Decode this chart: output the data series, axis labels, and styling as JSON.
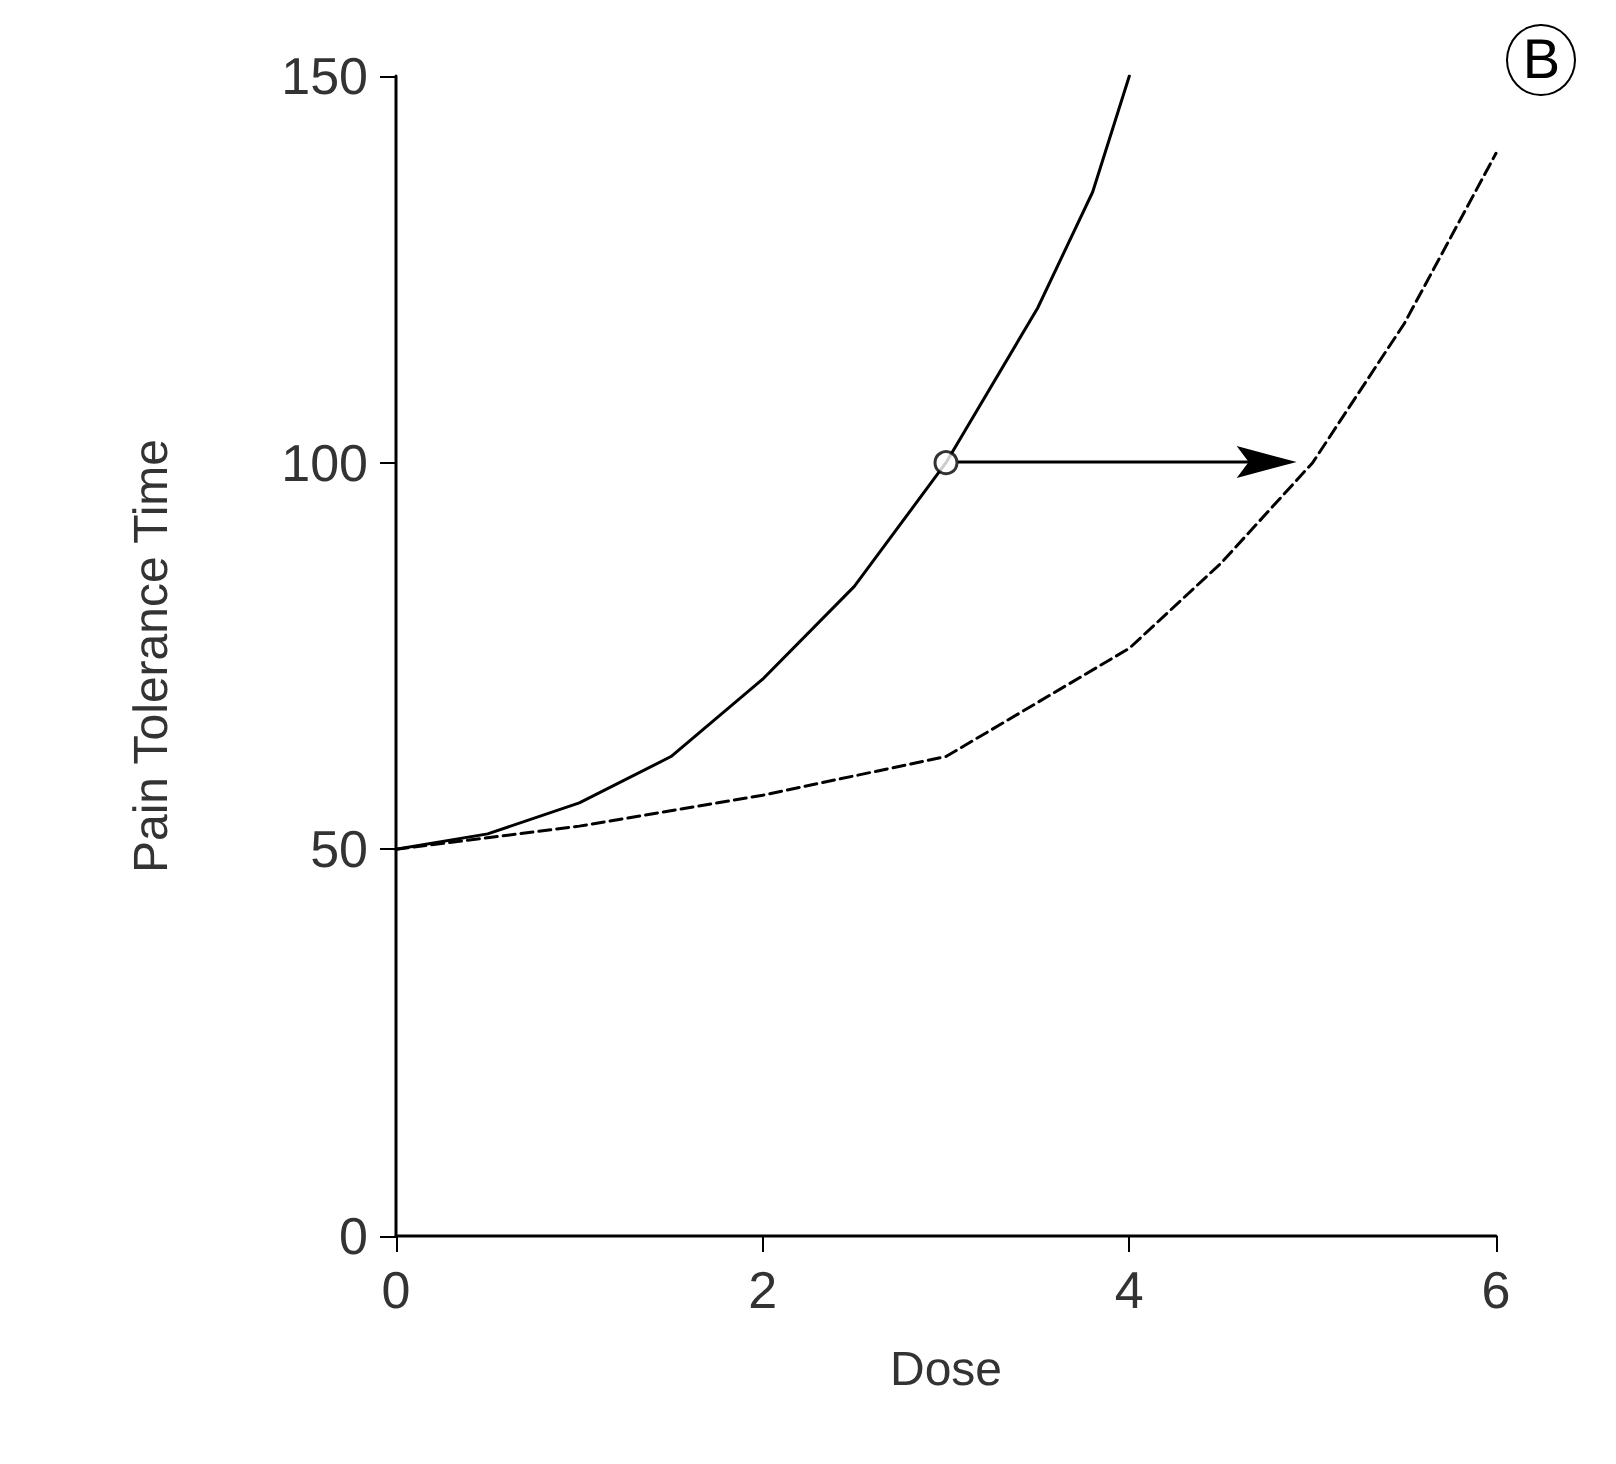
{
  "chart_data": {
    "type": "line",
    "xlabel": "Dose",
    "ylabel": "Pain Tolerance Time",
    "annotations": [
      "B"
    ],
    "xlim": [
      0,
      6
    ],
    "ylim": [
      0,
      150
    ],
    "xticks": [
      0,
      2,
      4,
      6
    ],
    "yticks": [
      0,
      50,
      100,
      150
    ],
    "series": [
      {
        "color": "#000000",
        "line_style": "solid",
        "marker": "none",
        "x": [
          0,
          0.5,
          1,
          1.5,
          2,
          2.5,
          3,
          3.5,
          3.8,
          4
        ],
        "values": [
          50,
          52,
          56,
          62,
          72,
          84,
          100,
          120,
          135,
          150
        ]
      },
      {
        "color": "#000000",
        "line_style": "dashed",
        "marker": "none",
        "x": [
          0,
          1,
          2,
          3,
          4,
          4.5,
          5,
          5.5,
          6
        ],
        "values": [
          50,
          53,
          57,
          62,
          76,
          87,
          100,
          118,
          140
        ]
      },
      {
        "type": "scatter",
        "color": "#000000",
        "marker": "circle",
        "x": [
          3
        ],
        "values": [
          100
        ]
      }
    ]
  }
}
